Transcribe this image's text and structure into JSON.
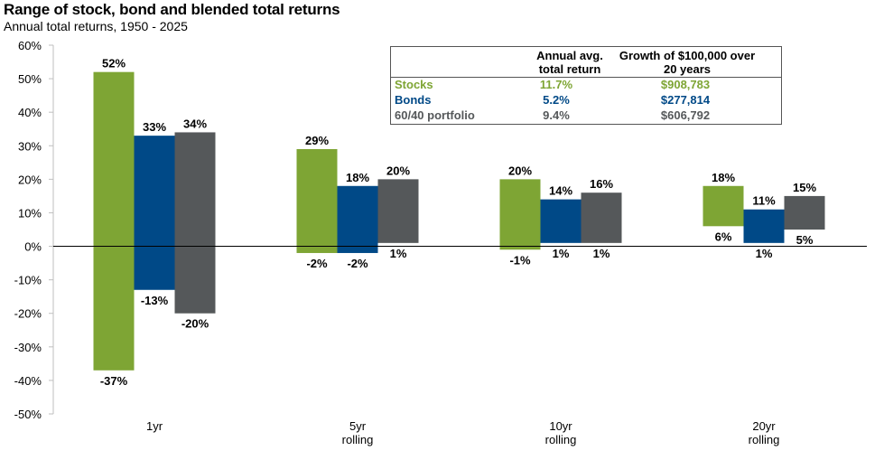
{
  "title": "Range of stock, bond and blended total returns",
  "subtitle": "Annual total returns, 1950 - 2025",
  "colors": {
    "stocks": "#7ea534",
    "bonds": "#004987",
    "blend": "#55585a"
  },
  "chart_data": {
    "type": "bar",
    "variant": "floating-range",
    "categories": [
      [
        "1yr"
      ],
      [
        "5yr",
        "rolling"
      ],
      [
        "10yr",
        "rolling"
      ],
      [
        "20yr",
        "rolling"
      ]
    ],
    "ylim": [
      -50,
      60
    ],
    "yticks": [
      -50,
      -40,
      -30,
      -20,
      -10,
      0,
      10,
      20,
      30,
      40,
      50,
      60
    ],
    "ytick_labels": [
      "-50%",
      "-40%",
      "-30%",
      "-20%",
      "-10%",
      "0%",
      "10%",
      "20%",
      "30%",
      "40%",
      "50%",
      "60%"
    ],
    "grid": false,
    "series": [
      {
        "name": "Stocks",
        "color": "#7ea534",
        "max": [
          52,
          29,
          20,
          18
        ],
        "min": [
          -37,
          -2,
          -1,
          6
        ],
        "max_labels": [
          "52%",
          "29%",
          "20%",
          "18%"
        ],
        "min_labels": [
          "-37%",
          "-2%",
          "-1%",
          "6%"
        ]
      },
      {
        "name": "Bonds",
        "color": "#004987",
        "max": [
          33,
          18,
          14,
          11
        ],
        "min": [
          -13,
          -2,
          1,
          1
        ],
        "max_labels": [
          "33%",
          "18%",
          "14%",
          "11%"
        ],
        "min_labels": [
          "-13%",
          "-2%",
          "1%",
          "1%"
        ]
      },
      {
        "name": "60/40 portfolio",
        "color": "#55585a",
        "max": [
          34,
          20,
          16,
          15
        ],
        "min": [
          -20,
          1,
          1,
          5
        ],
        "max_labels": [
          "34%",
          "20%",
          "16%",
          "15%"
        ],
        "min_labels": [
          "-20%",
          "1%",
          "1%",
          "5%"
        ]
      }
    ]
  },
  "table": {
    "header_col1": [
      "Annual avg.",
      "total return"
    ],
    "header_col2": [
      "Growth of $100,000 over",
      "20 years"
    ],
    "rows": [
      {
        "label": "Stocks",
        "avg": "11.7%",
        "growth": "$908,783",
        "color": "#7ea534"
      },
      {
        "label": "Bonds",
        "avg": "5.2%",
        "growth": "$277,814",
        "color": "#004987"
      },
      {
        "label": "60/40 portfolio",
        "avg": "9.4%",
        "growth": "$606,792",
        "color": "#55585a"
      }
    ]
  }
}
